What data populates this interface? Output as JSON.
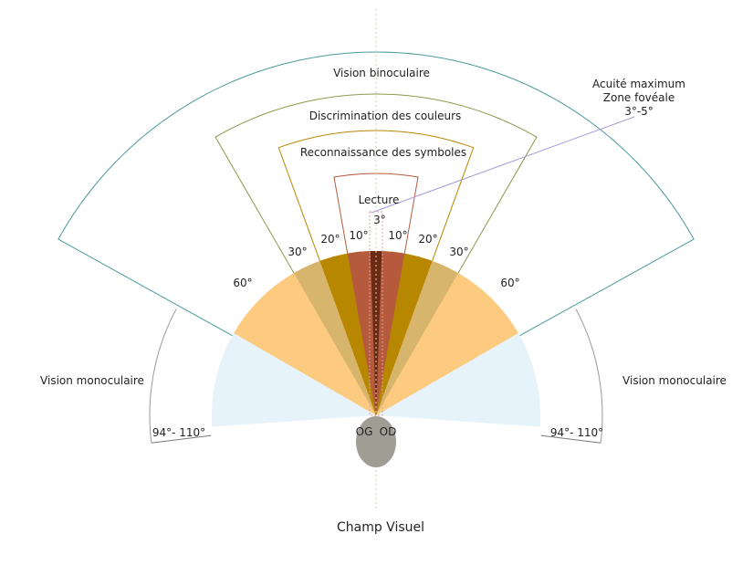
{
  "title": "Champ Visuel",
  "labels": {
    "binocular": "Vision binoculaire",
    "colors": "Discrimination des couleurs",
    "symbols": "Reconnaissance des symboles",
    "reading": "Lecture",
    "acuity_line1": "Acuité maximum",
    "acuity_line2": "Zone fovéale",
    "acuity_line3": "3°-5°",
    "monocular_left": "Vision monoculaire",
    "monocular_right": "Vision monoculaire",
    "range_left": "94°- 110°",
    "range_right": "94°- 110°",
    "left_eye": "OG",
    "right_eye": "OD"
  },
  "angles": {
    "a3": "3°",
    "a10_left": "10°",
    "a10_right": "10°",
    "a20_left": "20°",
    "a20_right": "20°",
    "a30_left": "30°",
    "a30_right": "30°",
    "a60_left": "60°",
    "a60_right": "60°"
  },
  "colors": {
    "monocular": "#e6f3fb",
    "deg60": "#fccb7f",
    "deg30": "#d8b56c",
    "deg20": "#b88700",
    "deg10": "#b55a3c",
    "deg3": "#6b2a14",
    "head": "#a09e94"
  }
}
